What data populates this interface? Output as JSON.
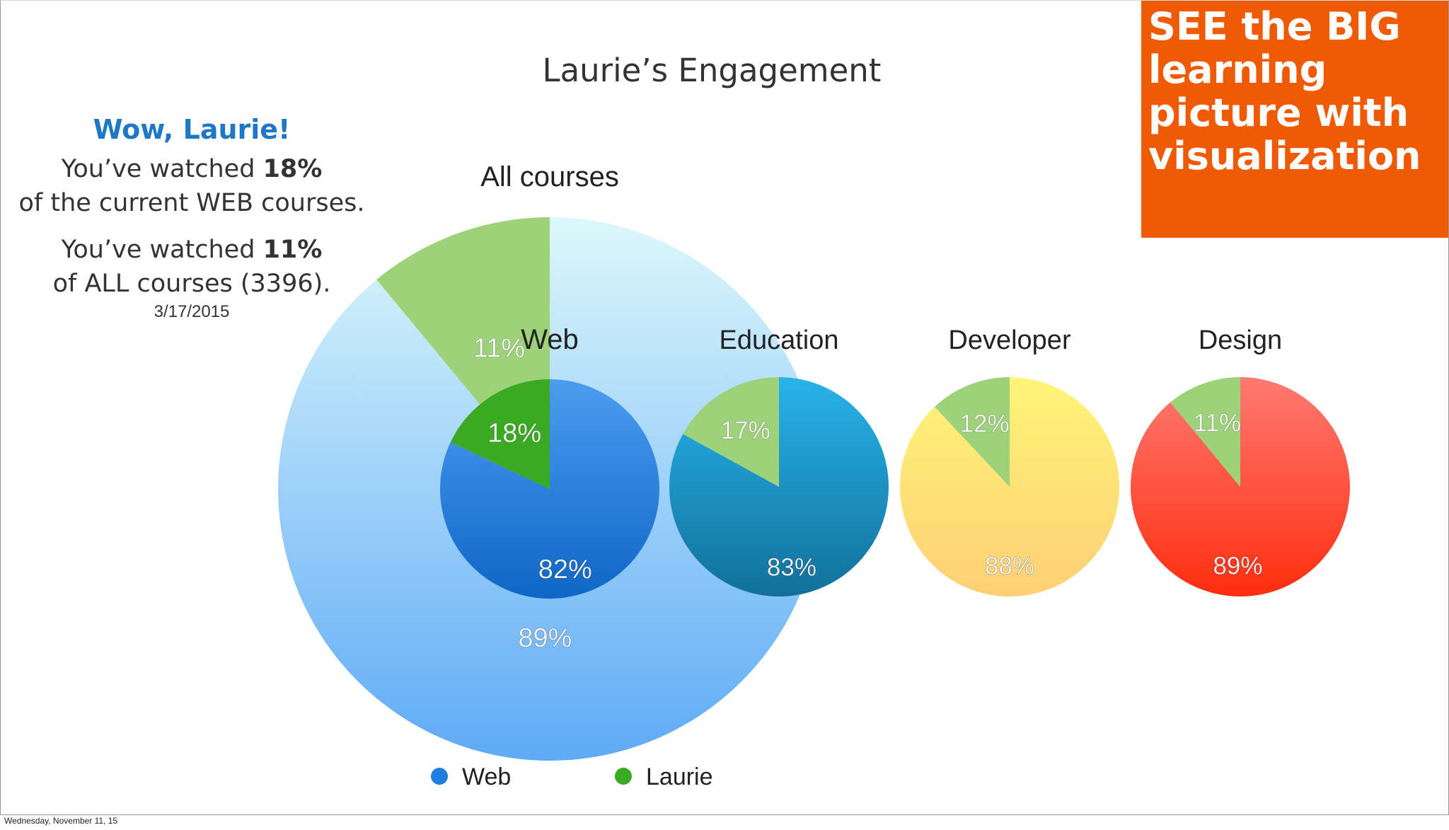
{
  "title": "Laurie’s Engagement",
  "side_panel": {
    "headline": "Wow, Laurie!",
    "line1_prefix": "You’ve watched ",
    "line1_value": "18%",
    "line2": "of the current WEB courses.",
    "line3_prefix": "You’ve watched ",
    "line3_value": "11%",
    "line4": "of ALL courses (3396).",
    "date": "3/17/2015"
  },
  "callout": {
    "text": "SEE the BIG learning picture with visualization",
    "color": "#f05a05"
  },
  "footer": "Wednesday, November 11, 15",
  "chart_data": [
    {
      "type": "pie",
      "title": "All courses",
      "slices": [
        {
          "label": "89%",
          "value": 89,
          "color_top": "#ddf8fb",
          "color_bottom": "#5eaaf6"
        },
        {
          "label": "11%",
          "value": 11,
          "color": "#9ed27a"
        }
      ]
    },
    {
      "type": "pie",
      "title": "Web",
      "slices": [
        {
          "label": "82%",
          "value": 82,
          "color_top": "#4d9cf0",
          "color_bottom": "#0e66c6"
        },
        {
          "label": "18%",
          "value": 18,
          "color": "#3aaa23"
        }
      ]
    },
    {
      "type": "pie",
      "title": "Education",
      "slices": [
        {
          "label": "83%",
          "value": 83,
          "color_top": "#28b3ea",
          "color_bottom": "#11709a"
        },
        {
          "label": "17%",
          "value": 17,
          "color": "#9ed27a"
        }
      ]
    },
    {
      "type": "pie",
      "title": "Developer",
      "slices": [
        {
          "label": "88%",
          "value": 88,
          "color_top": "#fff577",
          "color_bottom": "#fecf76"
        },
        {
          "label": "12%",
          "value": 12,
          "color": "#9ed27a"
        }
      ]
    },
    {
      "type": "pie",
      "title": "Design",
      "slices": [
        {
          "label": "89%",
          "value": 89,
          "color_top": "#ff7a72",
          "color_bottom": "#ff2d0e"
        },
        {
          "label": "11%",
          "value": 11,
          "color": "#9ed27a"
        }
      ]
    }
  ],
  "legend": [
    {
      "label": "Web",
      "color": "#1f7fe0"
    },
    {
      "label": "Laurie",
      "color": "#3aaa23"
    }
  ]
}
